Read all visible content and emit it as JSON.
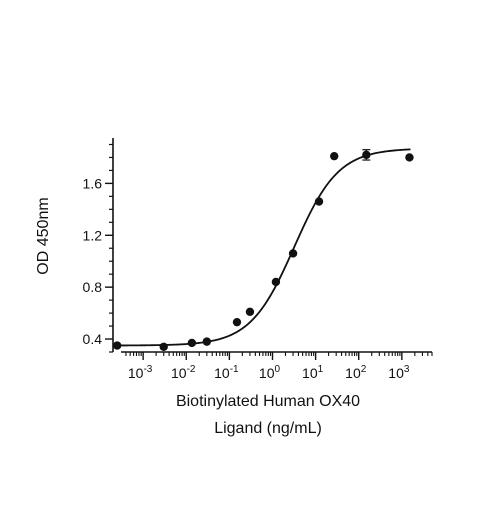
{
  "chart_data": {
    "type": "scatter",
    "title": "",
    "xlabel_lines": [
      "Biotinylated Human OX40",
      "Ligand (ng/mL)"
    ],
    "ylabel": "OD 450nm",
    "x_scale": "log10",
    "xlim": [
      0.0002,
      5000
    ],
    "ylim": [
      0.3,
      1.95
    ],
    "x_ticks": [
      {
        "value": 0.001,
        "base": "10",
        "exp": "-3"
      },
      {
        "value": 0.01,
        "base": "10",
        "exp": "-2"
      },
      {
        "value": 0.1,
        "base": "10",
        "exp": "-1"
      },
      {
        "value": 1,
        "base": "10",
        "exp": "0"
      },
      {
        "value": 10,
        "base": "10",
        "exp": "1"
      },
      {
        "value": 100,
        "base": "10",
        "exp": "2"
      },
      {
        "value": 1000,
        "base": "10",
        "exp": "3"
      }
    ],
    "y_ticks": [
      {
        "value": 0.4,
        "label": "0.4"
      },
      {
        "value": 0.8,
        "label": "0.8"
      },
      {
        "value": 1.2,
        "label": "1.2"
      },
      {
        "value": 1.6,
        "label": "1.6"
      }
    ],
    "grid": false,
    "legend": "none",
    "series": [
      {
        "points": [
          {
            "x": 0.00025,
            "y": 0.35
          },
          {
            "x": 0.003,
            "y": 0.34
          },
          {
            "x": 0.0135,
            "y": 0.37
          },
          {
            "x": 0.03,
            "y": 0.38
          },
          {
            "x": 0.15,
            "y": 0.53
          },
          {
            "x": 0.3,
            "y": 0.61
          },
          {
            "x": 1.2,
            "y": 0.84
          },
          {
            "x": 3,
            "y": 1.06
          },
          {
            "x": 12,
            "y": 1.46
          },
          {
            "x": 27,
            "y": 1.81
          },
          {
            "x": 150,
            "y": 1.82,
            "yerr": 0.04
          },
          {
            "x": 1500,
            "y": 1.8
          }
        ]
      }
    ],
    "fit_curve": {
      "model": "4PL",
      "bottom": 0.35,
      "top": 1.87,
      "ec50": 3.2,
      "hill": 0.85
    },
    "colors": {
      "marker": "#111111",
      "line": "#111111",
      "axis": "#111111"
    }
  }
}
